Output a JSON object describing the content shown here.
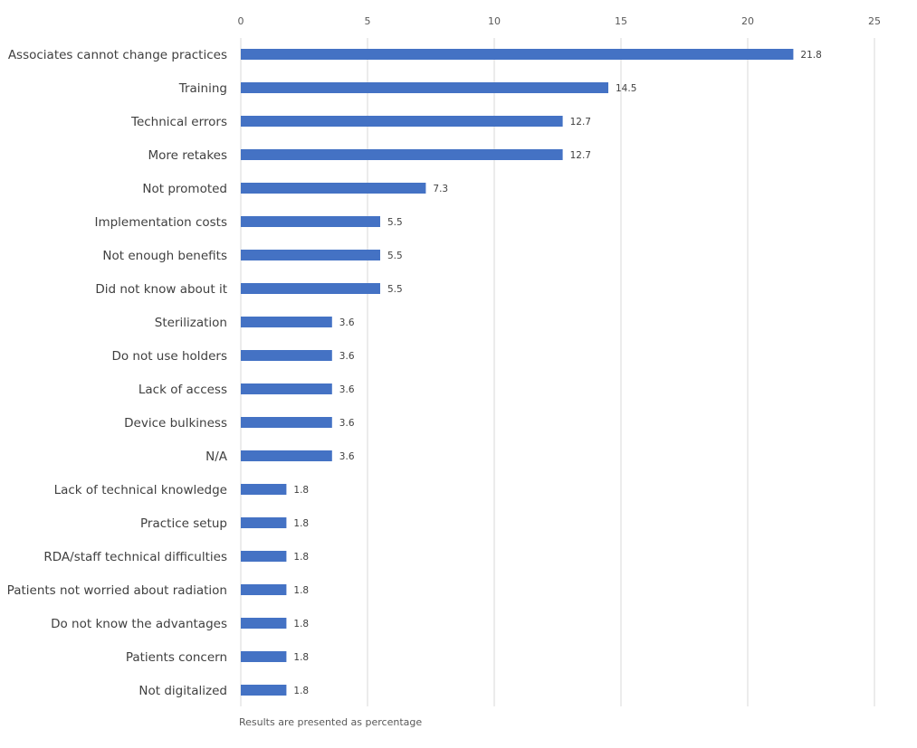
{
  "chart_data": {
    "type": "bar",
    "orientation": "horizontal",
    "categories": [
      "Associates cannot change practices",
      "Training",
      "Technical errors",
      "More retakes",
      "Not promoted",
      "Implementation costs",
      "Not enough benefits",
      "Did not know about it",
      "Sterilization",
      "Do not use holders",
      "Lack of access",
      "Device bulkiness",
      "N/A",
      "Lack of technical knowledge",
      "Practice setup",
      "RDA/staff technical difficulties",
      "Patients not worried about radiation",
      "Do not know the advantages",
      "Patients concern",
      "Not digitalized"
    ],
    "values": [
      21.8,
      14.5,
      12.7,
      12.7,
      7.3,
      5.5,
      5.5,
      5.5,
      3.6,
      3.6,
      3.6,
      3.6,
      3.6,
      1.8,
      1.8,
      1.8,
      1.8,
      1.8,
      1.8,
      1.8
    ],
    "value_labels": [
      "21.8",
      "14.5",
      "12.7",
      "12.7",
      "7.3",
      "5.5",
      "5.5",
      "5.5",
      "3.6",
      "3.6",
      "3.6",
      "3.6",
      "3.6",
      "1.8",
      "1.8",
      "1.8",
      "1.8",
      "1.8",
      "1.8",
      "1.8"
    ],
    "xlim": [
      0,
      25
    ],
    "x_ticks": [
      "0",
      "5",
      "10",
      "15",
      "20",
      "25"
    ],
    "x_axis_position": "top",
    "grid": true,
    "legend": "none",
    "bar_color": "#4472c4",
    "footnote": "Results are presented as percentage"
  }
}
